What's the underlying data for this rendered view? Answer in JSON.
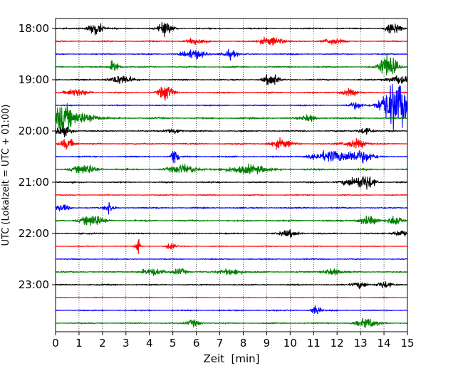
{
  "chart_data": {
    "type": "line",
    "subtype": "helicorder",
    "xlabel": "Zeit  [min]",
    "ylabel": "UTC (Lokalzeit = UTC + 01:00)",
    "xlim": [
      0,
      15
    ],
    "x_ticks": [
      0,
      1,
      2,
      3,
      4,
      5,
      6,
      7,
      8,
      9,
      10,
      11,
      12,
      13,
      14,
      15
    ],
    "x_tick_labels": [
      "0",
      "1",
      "2",
      "3",
      "4",
      "5",
      "6",
      "7",
      "8",
      "9",
      "10",
      "11",
      "12",
      "13",
      "14",
      "15"
    ],
    "y_tick_labels": [
      "18:00",
      "19:00",
      "20:00",
      "21:00",
      "22:00",
      "23:00"
    ],
    "y_tick_rows": [
      0,
      4,
      8,
      12,
      16,
      20
    ],
    "grid": "vertical dotted lines at each minute",
    "row_colors": [
      "#000000",
      "#ff0000",
      "#0000ff",
      "#008000"
    ],
    "traces": [
      {
        "start": "18:00",
        "noise": 0.7,
        "events": [
          [
            1.7,
            6,
            0.3
          ],
          [
            4.7,
            6,
            0.3
          ],
          [
            14.4,
            6,
            0.3
          ]
        ]
      },
      {
        "start": "18:15",
        "noise": 0.6,
        "events": [
          [
            6.0,
            3,
            0.4
          ],
          [
            9.2,
            4,
            0.5
          ],
          [
            11.8,
            3,
            0.4
          ]
        ]
      },
      {
        "start": "18:30",
        "noise": 0.6,
        "events": [
          [
            5.9,
            4,
            0.5
          ],
          [
            7.4,
            4,
            0.3
          ]
        ]
      },
      {
        "start": "18:45",
        "noise": 0.7,
        "events": [
          [
            2.5,
            6,
            0.2
          ],
          [
            14.1,
            4,
            0.3
          ],
          [
            14.2,
            8,
            0.4
          ]
        ]
      },
      {
        "start": "19:00",
        "noise": 0.7,
        "events": [
          [
            2.8,
            4,
            0.5
          ],
          [
            9.2,
            6,
            0.3
          ],
          [
            14.7,
            4,
            0.5
          ]
        ]
      },
      {
        "start": "19:15",
        "noise": 0.7,
        "events": [
          [
            4.7,
            7,
            0.3
          ],
          [
            0.9,
            3,
            0.5
          ],
          [
            12.5,
            3,
            0.4
          ]
        ]
      },
      {
        "start": "19:30",
        "noise": 0.6,
        "events": [
          [
            14.5,
            22,
            0.6
          ],
          [
            12.8,
            3,
            0.3
          ]
        ]
      },
      {
        "start": "19:45",
        "noise": 0.9,
        "events": [
          [
            0.3,
            12,
            0.4
          ],
          [
            1.2,
            5,
            0.6
          ],
          [
            10.8,
            3,
            0.3
          ]
        ]
      },
      {
        "start": "20:00",
        "noise": 0.7,
        "events": [
          [
            0.3,
            4,
            0.4
          ],
          [
            5.0,
            3,
            0.3
          ],
          [
            13.2,
            3,
            0.3
          ]
        ]
      },
      {
        "start": "20:15",
        "noise": 0.7,
        "events": [
          [
            0.5,
            5,
            0.3
          ],
          [
            9.6,
            4,
            0.5
          ],
          [
            12.8,
            4,
            0.5
          ]
        ]
      },
      {
        "start": "20:30",
        "noise": 0.7,
        "events": [
          [
            5.1,
            10,
            0.15
          ],
          [
            11.8,
            5,
            0.8
          ],
          [
            13.0,
            5,
            0.6
          ]
        ]
      },
      {
        "start": "20:45",
        "noise": 0.9,
        "events": [
          [
            1.3,
            4,
            0.5
          ],
          [
            5.5,
            4,
            0.6
          ],
          [
            8.2,
            4,
            0.8
          ]
        ]
      },
      {
        "start": "21:00",
        "noise": 0.7,
        "events": [
          [
            12.8,
            4,
            0.6
          ],
          [
            13.3,
            5,
            0.3
          ]
        ]
      },
      {
        "start": "21:15",
        "noise": 0.5,
        "events": []
      },
      {
        "start": "21:30",
        "noise": 0.7,
        "events": [
          [
            2.3,
            5,
            0.2
          ],
          [
            0.3,
            3,
            0.3
          ]
        ]
      },
      {
        "start": "21:45",
        "noise": 0.8,
        "events": [
          [
            1.6,
            5,
            0.5
          ],
          [
            13.3,
            4,
            0.4
          ],
          [
            14.5,
            5,
            0.3
          ]
        ]
      },
      {
        "start": "22:00",
        "noise": 0.7,
        "events": [
          [
            10.0,
            3,
            0.4
          ],
          [
            14.7,
            3,
            0.3
          ]
        ]
      },
      {
        "start": "22:15",
        "noise": 0.4,
        "events": [
          [
            3.5,
            7,
            0.1
          ],
          [
            4.9,
            3,
            0.2
          ]
        ]
      },
      {
        "start": "22:30",
        "noise": 0.5,
        "events": []
      },
      {
        "start": "22:45",
        "noise": 0.7,
        "events": [
          [
            4.1,
            3,
            0.5
          ],
          [
            5.3,
            3,
            0.3
          ],
          [
            7.5,
            3,
            0.5
          ],
          [
            11.8,
            3,
            0.4
          ]
        ]
      },
      {
        "start": "23:00",
        "noise": 0.7,
        "events": [
          [
            13.0,
            3,
            0.3
          ],
          [
            14.0,
            3,
            0.3
          ]
        ]
      },
      {
        "start": "23:15",
        "noise": 0.4,
        "events": []
      },
      {
        "start": "23:30",
        "noise": 0.6,
        "events": [
          [
            11.1,
            4,
            0.2
          ]
        ]
      },
      {
        "start": "23:45",
        "noise": 0.6,
        "events": [
          [
            5.9,
            3,
            0.3
          ],
          [
            13.3,
            4,
            0.5
          ]
        ]
      }
    ]
  }
}
